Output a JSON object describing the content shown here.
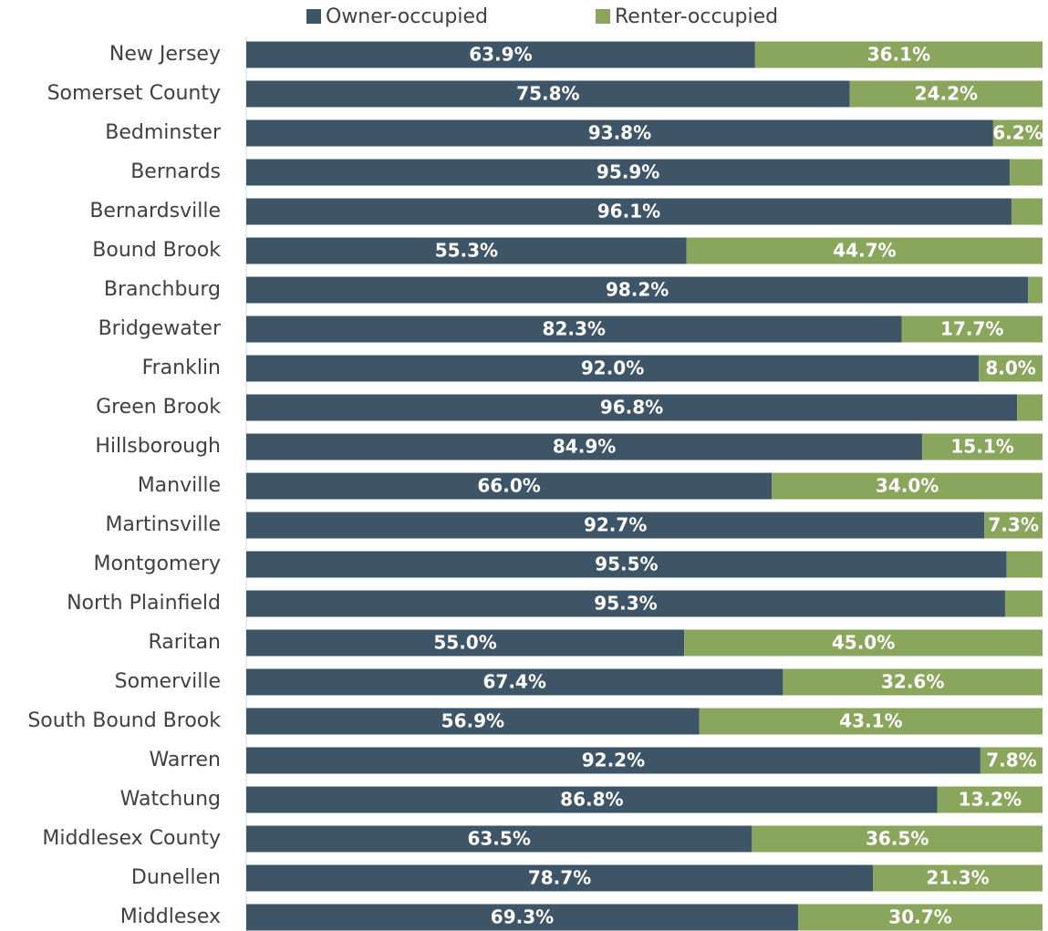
{
  "chart_data": {
    "type": "stacked_barh",
    "categories": [
      "New Jersey",
      "Somerset County",
      "Bedminster",
      "Bernards",
      "Bernardsville",
      "Bound Brook",
      "Branchburg",
      "Bridgewater",
      "Franklin",
      "Green Brook",
      "Hillsborough",
      "Manville",
      "Martinsville",
      "Montgomery",
      "North Plainfield",
      "Raritan",
      "Somerville",
      "South Bound Brook",
      "Warren",
      "Watchung",
      "Middlesex County",
      "Dunellen",
      "Middlesex"
    ],
    "series": [
      {
        "name": "Owner-occupied",
        "color": "#3e5568",
        "values": [
          63.9,
          75.8,
          93.8,
          95.9,
          96.1,
          55.3,
          98.2,
          82.3,
          92.0,
          96.8,
          84.9,
          66.0,
          92.7,
          95.5,
          95.3,
          55.0,
          67.4,
          56.9,
          92.2,
          86.8,
          63.5,
          78.7,
          69.3
        ],
        "value_labels": [
          "63.9%",
          "75.8%",
          "93.8%",
          "95.9%",
          "96.1%",
          "55.3%",
          "98.2%",
          "82.3%",
          "92.0%",
          "96.8%",
          "84.9%",
          "66.0%",
          "92.7%",
          "95.5%",
          "95.3%",
          "55.0%",
          "67.4%",
          "56.9%",
          "92.2%",
          "86.8%",
          "63.5%",
          "78.7%",
          "69.3%"
        ]
      },
      {
        "name": "Renter-occupied",
        "color": "#8aa65c",
        "values": [
          36.1,
          24.2,
          6.2,
          4.1,
          3.9,
          44.7,
          1.8,
          17.7,
          8.0,
          3.2,
          15.1,
          34.0,
          7.3,
          4.5,
          4.7,
          45.0,
          32.6,
          43.1,
          7.8,
          13.2,
          36.5,
          21.3,
          30.7
        ],
        "value_labels": [
          "36.1%",
          "24.2%",
          "6.2%",
          null,
          null,
          "44.7%",
          null,
          "17.7%",
          "8.0%",
          null,
          "15.1%",
          "34.0%",
          "7.3%",
          null,
          null,
          "45.0%",
          "32.6%",
          "43.1%",
          "7.8%",
          "13.2%",
          "36.5%",
          "21.3%",
          "30.7%"
        ]
      }
    ],
    "xlim": [
      0,
      100
    ]
  }
}
